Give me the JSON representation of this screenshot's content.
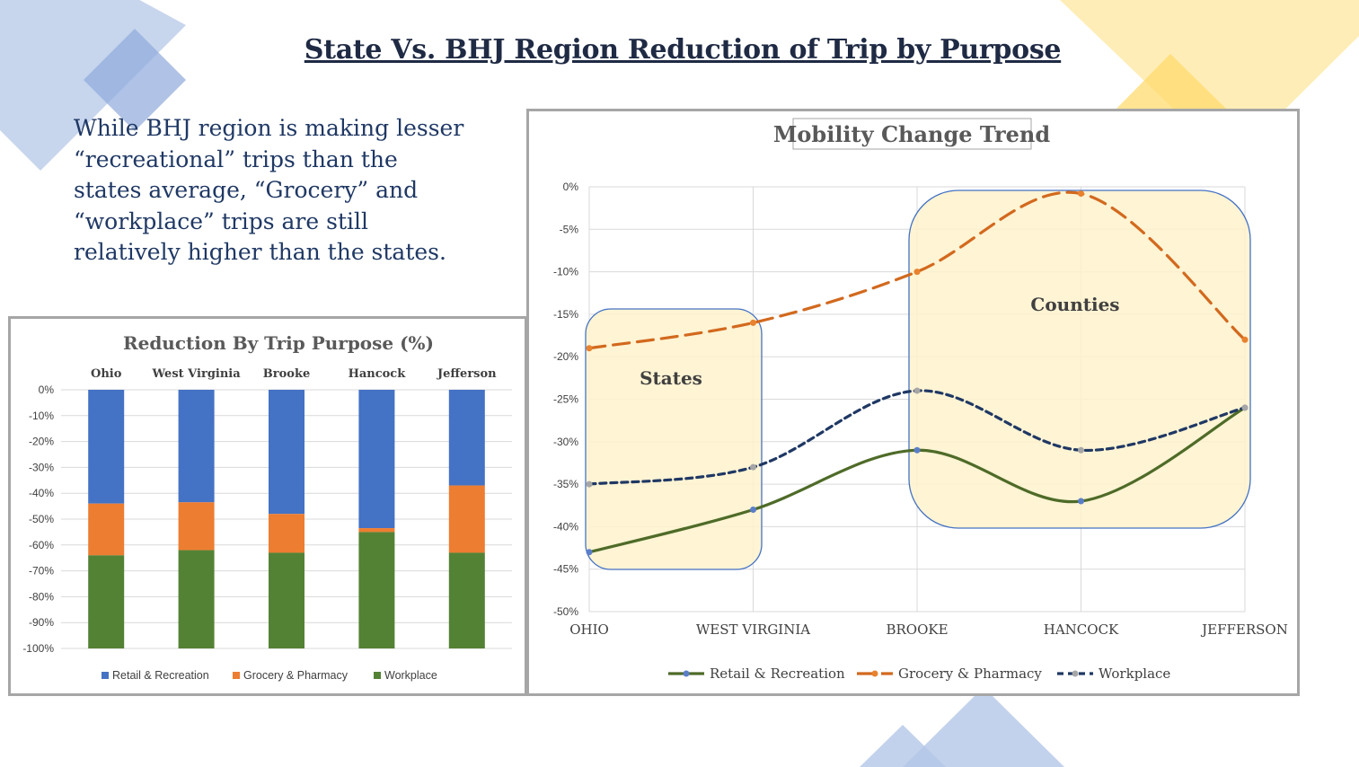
{
  "slide": {
    "title": "State Vs. BHJ Region Reduction of Trip by Purpose",
    "body_lines": [
      "While BHJ region is making lesser",
      "“recreational” trips than the",
      "states average, “Grocery” and",
      "“workplace” trips are still",
      "relatively higher than the states."
    ],
    "decoration_colors": {
      "blue": "#b4c7e7",
      "blue_dark": "#8faadc",
      "yellow": "#ffe699",
      "yellow_dark": "#ffd966"
    }
  },
  "chart_data": [
    {
      "type": "bar",
      "stacked": true,
      "title": "Reduction By Trip Purpose (%)",
      "categories": [
        "Ohio",
        "West Virginia",
        "Brooke",
        "Hancock",
        "Jefferson"
      ],
      "category_axis_position": "top",
      "yticks": [
        "0%",
        "-10%",
        "-20%",
        "-30%",
        "-40%",
        "-50%",
        "-60%",
        "-70%",
        "-80%",
        "-90%",
        "-100%"
      ],
      "ylim": [
        -100,
        0
      ],
      "grid": true,
      "legend": "bottom",
      "series": [
        {
          "name": "Retail & Recreation",
          "color": "#4472c4",
          "values": [
            -44,
            -43.5,
            -48,
            -53.5,
            -37
          ]
        },
        {
          "name": "Grocery & Pharmacy",
          "color": "#ed7d31",
          "values": [
            -20,
            -18.5,
            -15,
            -1.5,
            -26
          ]
        },
        {
          "name": "Workplace",
          "color": "#548235",
          "values": [
            -36,
            -38,
            -37,
            -45,
            -37
          ]
        }
      ]
    },
    {
      "type": "line",
      "title": "Mobility Change Trend",
      "categories": [
        "OHIO",
        "WEST VIRGINIA",
        "BROOKE",
        "HANCOCK",
        "JEFFERSON"
      ],
      "yticks": [
        "0%",
        "-5%",
        "-10%",
        "-15%",
        "-20%",
        "-25%",
        "-30%",
        "-35%",
        "-40%",
        "-45%",
        "-50%"
      ],
      "ylim": [
        -50,
        0
      ],
      "grid": true,
      "legend": "bottom",
      "annotations": [
        {
          "label": "States",
          "from": 0,
          "to": 1
        },
        {
          "label": "Counties",
          "from": 2,
          "to": 4
        }
      ],
      "annotation_fill": "#fff2cc",
      "annotation_border": "#4472c4",
      "series": [
        {
          "name": "Retail & Recreation",
          "color": "#4e6b28",
          "marker_color": "#5b7ec9",
          "dash": "solid",
          "values": [
            -43,
            -38,
            -31,
            -37,
            -26
          ]
        },
        {
          "name": "Grocery & Pharmacy",
          "color": "#d2691e",
          "marker_color": "#e8822e",
          "dash": "long-dash",
          "values": [
            -19,
            -16,
            -10,
            -0.8,
            -18
          ]
        },
        {
          "name": "Workplace",
          "color": "#1f3864",
          "marker_color": "#a6a6a6",
          "dash": "short-dash",
          "values": [
            -35,
            -33,
            -24,
            -31,
            -26
          ]
        }
      ]
    }
  ]
}
